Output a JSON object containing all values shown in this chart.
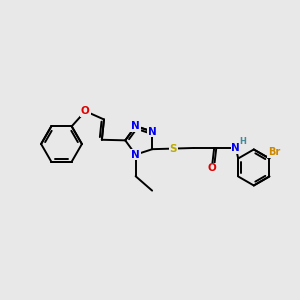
{
  "background_color": "#e8e8e8",
  "atom_colors": {
    "N": "#0000ee",
    "O": "#dd0000",
    "S": "#bbaa00",
    "Br": "#cc8800",
    "H": "#448899"
  },
  "bond_color": "#000000",
  "bond_width": 1.4,
  "font_size": 7.5,
  "bold": true
}
